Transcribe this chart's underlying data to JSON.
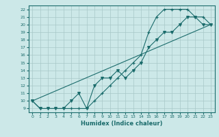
{
  "title": "",
  "xlabel": "Humidex (Indice chaleur)",
  "bg_color": "#cce8e8",
  "grid_color": "#a8c8c8",
  "line_color": "#1a6b6b",
  "xlim": [
    -0.5,
    23.5
  ],
  "ylim": [
    8.5,
    22.5
  ],
  "xticks": [
    0,
    1,
    2,
    3,
    4,
    5,
    6,
    7,
    8,
    9,
    10,
    11,
    12,
    13,
    14,
    15,
    16,
    17,
    18,
    19,
    20,
    21,
    22,
    23
  ],
  "yticks": [
    9,
    10,
    11,
    12,
    13,
    14,
    15,
    16,
    17,
    18,
    19,
    20,
    21,
    22
  ],
  "line1_x": [
    0,
    1,
    2,
    3,
    4,
    5,
    6,
    7,
    8,
    9,
    10,
    11,
    12,
    13,
    14,
    15,
    16,
    17,
    18,
    19,
    20,
    21,
    22,
    23
  ],
  "line1_y": [
    10,
    9,
    9,
    9,
    9,
    9,
    9,
    9,
    10,
    11,
    12,
    13,
    14,
    15,
    16,
    19,
    21,
    22,
    22,
    22,
    22,
    21,
    21,
    20
  ],
  "line2_x": [
    0,
    1,
    2,
    3,
    4,
    5,
    6,
    7,
    8,
    9,
    10,
    11,
    12,
    13,
    14,
    15,
    16,
    17,
    18,
    19,
    20,
    21,
    22,
    23
  ],
  "line2_y": [
    10,
    9,
    9,
    9,
    9,
    10,
    11,
    9,
    12,
    13,
    13,
    14,
    13,
    14,
    15,
    17,
    18,
    19,
    19,
    20,
    21,
    21,
    20,
    20
  ],
  "line3_x": [
    0,
    23
  ],
  "line3_y": [
    10,
    20
  ]
}
